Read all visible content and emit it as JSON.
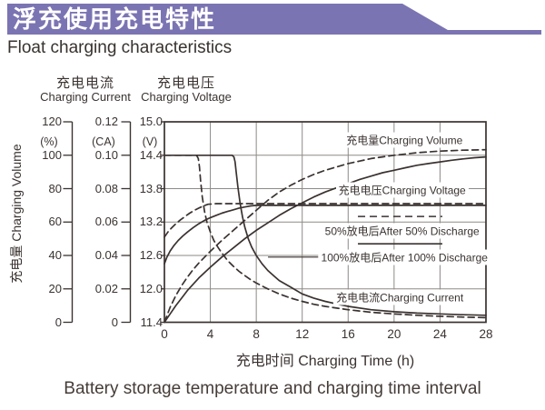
{
  "colors": {
    "ink": "#3a3230",
    "grid": "#8e8a86",
    "accent_purple": "#7b74b2",
    "text_dark": "#453c38"
  },
  "header": {
    "title_zh": "浮充使用充电特性",
    "subtitle_en": "Float charging characteristics"
  },
  "caption": "Battery storage temperature and charging time interval",
  "chart_data": {
    "type": "line",
    "x_axis": {
      "label": "充电时间 Charging Time (h)",
      "ticks": [
        0,
        4,
        8,
        12,
        16,
        20,
        24,
        28
      ],
      "range": [
        0,
        28
      ],
      "grid": true
    },
    "y_axes": [
      {
        "id": "volume",
        "unit": "(%)",
        "ticks": [
          "120",
          "100",
          "80",
          "60",
          "40",
          "20",
          "0"
        ],
        "range": [
          0,
          120
        ],
        "side_label": "充电量 Charging Volume"
      },
      {
        "id": "current",
        "header_zh": "充电电流",
        "header_en": "Charging Current",
        "unit": "(CA)",
        "ticks": [
          "0.12",
          "0.10",
          "0.08",
          "0.06",
          "0.04",
          "0.02",
          "0"
        ],
        "range": [
          0,
          0.12
        ]
      },
      {
        "id": "voltage",
        "header_zh": "充电电压",
        "header_en": "Charging Voltage",
        "unit": "(V)",
        "ticks": [
          "15.0",
          "14.4",
          "13.8",
          "13.2",
          "12.6",
          "12.0",
          "11.4"
        ],
        "range": [
          11.4,
          15.0
        ]
      }
    ],
    "series": [
      {
        "name": "charging-current-after-100-discharge",
        "axis": "current",
        "style": "solid",
        "points": [
          [
            0,
            0.1
          ],
          [
            5.9,
            0.1
          ],
          [
            6.05,
            0.099
          ],
          [
            6.15,
            0.096
          ],
          [
            6.25,
            0.09
          ],
          [
            6.4,
            0.081
          ],
          [
            6.6,
            0.071
          ],
          [
            6.8,
            0.063
          ],
          [
            7,
            0.057
          ],
          [
            7.3,
            0.05
          ],
          [
            7.6,
            0.045
          ],
          [
            8,
            0.04
          ],
          [
            8.5,
            0.035
          ],
          [
            9,
            0.031
          ],
          [
            9.5,
            0.028
          ],
          [
            10,
            0.025
          ],
          [
            11,
            0.021
          ],
          [
            12,
            0.017
          ],
          [
            13,
            0.0145
          ],
          [
            14,
            0.0125
          ],
          [
            15,
            0.011
          ],
          [
            16,
            0.0095
          ],
          [
            18,
            0.0075
          ],
          [
            20,
            0.0063
          ],
          [
            22,
            0.0055
          ],
          [
            24,
            0.005
          ],
          [
            26,
            0.0045
          ],
          [
            28,
            0.0042
          ]
        ]
      },
      {
        "name": "charging-current-after-50-discharge",
        "axis": "current",
        "style": "dashed",
        "points": [
          [
            0,
            0.1
          ],
          [
            2.8,
            0.1
          ],
          [
            2.95,
            0.098
          ],
          [
            3.05,
            0.093
          ],
          [
            3.15,
            0.085
          ],
          [
            3.3,
            0.075
          ],
          [
            3.5,
            0.066
          ],
          [
            3.7,
            0.06
          ],
          [
            4,
            0.054
          ],
          [
            4.3,
            0.049
          ],
          [
            4.7,
            0.0445
          ],
          [
            5,
            0.0415
          ],
          [
            5.5,
            0.037
          ],
          [
            6,
            0.0335
          ],
          [
            6.5,
            0.0305
          ],
          [
            7,
            0.028
          ],
          [
            7.5,
            0.0255
          ],
          [
            8,
            0.0235
          ],
          [
            9,
            0.02
          ],
          [
            10,
            0.017
          ],
          [
            11,
            0.0145
          ],
          [
            12,
            0.0125
          ],
          [
            13,
            0.0108
          ],
          [
            14,
            0.0095
          ],
          [
            15,
            0.0085
          ],
          [
            16,
            0.0075
          ],
          [
            18,
            0.006
          ],
          [
            20,
            0.005
          ],
          [
            22,
            0.0042
          ],
          [
            24,
            0.0036
          ],
          [
            26,
            0.0031
          ],
          [
            28,
            0.0028
          ]
        ]
      },
      {
        "name": "charging-voltage-after-100-discharge",
        "axis": "voltage",
        "style": "solid",
        "points": [
          [
            0,
            12.45
          ],
          [
            0.2,
            12.56
          ],
          [
            0.5,
            12.68
          ],
          [
            0.8,
            12.77
          ],
          [
            1.2,
            12.87
          ],
          [
            1.6,
            12.95
          ],
          [
            2,
            13.02
          ],
          [
            2.5,
            13.1
          ],
          [
            3,
            13.17
          ],
          [
            3.5,
            13.23
          ],
          [
            4,
            13.28
          ],
          [
            4.5,
            13.32
          ],
          [
            5,
            13.36
          ],
          [
            5.5,
            13.39
          ],
          [
            6,
            13.42
          ],
          [
            6.5,
            13.45
          ],
          [
            7,
            13.47
          ],
          [
            7.5,
            13.49
          ],
          [
            8,
            13.5
          ],
          [
            28,
            13.5
          ]
        ]
      },
      {
        "name": "charging-voltage-after-50-discharge",
        "axis": "voltage",
        "style": "dashed",
        "points": [
          [
            0,
            12.93
          ],
          [
            0.3,
            13.02
          ],
          [
            0.6,
            13.09
          ],
          [
            1,
            13.17
          ],
          [
            1.4,
            13.24
          ],
          [
            1.8,
            13.3
          ],
          [
            2.2,
            13.36
          ],
          [
            2.6,
            13.41
          ],
          [
            3,
            13.45
          ],
          [
            3.4,
            13.49
          ],
          [
            3.8,
            13.52
          ],
          [
            4.5,
            13.53
          ],
          [
            28,
            13.53
          ]
        ]
      },
      {
        "name": "charging-volume-after-100-discharge",
        "axis": "volume",
        "style": "solid",
        "points": [
          [
            0,
            0
          ],
          [
            0.5,
            5
          ],
          [
            1,
            10
          ],
          [
            1.5,
            14.5
          ],
          [
            2,
            19
          ],
          [
            3,
            26.5
          ],
          [
            4,
            33
          ],
          [
            5,
            39
          ],
          [
            6,
            44.5
          ],
          [
            7,
            50
          ],
          [
            8,
            55
          ],
          [
            9,
            59.5
          ],
          [
            10,
            64
          ],
          [
            11,
            68
          ],
          [
            12,
            71.5
          ],
          [
            13,
            75
          ],
          [
            14,
            78
          ],
          [
            15,
            80.5
          ],
          [
            16,
            83
          ],
          [
            17,
            85.5
          ],
          [
            18,
            87.5
          ],
          [
            19,
            89.5
          ],
          [
            20,
            91
          ],
          [
            21,
            92.5
          ],
          [
            22,
            94
          ],
          [
            23,
            95
          ],
          [
            24,
            96
          ],
          [
            25,
            97
          ],
          [
            26,
            97.8
          ],
          [
            27,
            98.5
          ],
          [
            28,
            99
          ]
        ]
      },
      {
        "name": "charging-volume-after-50-discharge",
        "axis": "volume",
        "style": "dashed",
        "points": [
          [
            0,
            0
          ],
          [
            0.5,
            9
          ],
          [
            1,
            16
          ],
          [
            1.5,
            22
          ],
          [
            2,
            27
          ],
          [
            2.5,
            31.5
          ],
          [
            3,
            35.5
          ],
          [
            4,
            42.5
          ],
          [
            5,
            49
          ],
          [
            6,
            55
          ],
          [
            7,
            61
          ],
          [
            8,
            67
          ],
          [
            9,
            73
          ],
          [
            10,
            78
          ],
          [
            11,
            82
          ],
          [
            12,
            85.5
          ],
          [
            13,
            88.5
          ],
          [
            14,
            91
          ],
          [
            15,
            93
          ],
          [
            16,
            95
          ],
          [
            17,
            96.5
          ],
          [
            18,
            98
          ],
          [
            19,
            99
          ],
          [
            20,
            100
          ],
          [
            22,
            101.5
          ],
          [
            24,
            102.5
          ],
          [
            26,
            103
          ],
          [
            28,
            103.3
          ]
        ]
      }
    ],
    "annotations": [
      {
        "name": "label-charging-volume",
        "text": "充电量Charging Volume",
        "t": 20.9,
        "v": 14.67
      },
      {
        "name": "label-charging-voltage",
        "text": "充电电压Charging Voltage",
        "t": 20.7,
        "v": 13.77
      },
      {
        "name": "legend-after-50-discharge",
        "text": "50%放电后After 50% Discharge",
        "t": 20.7,
        "v": 13.04
      },
      {
        "name": "legend-after-100-discharge",
        "text": "100%放电后After 100% Discharge",
        "t": 20.9,
        "v": 12.57
      },
      {
        "name": "label-charging-current",
        "text": "充电电流Charging Current",
        "t": 20.5,
        "v": 11.85
      }
    ],
    "legend_samples": [
      {
        "style": "dashed",
        "t1": 16.85,
        "t2": 24.2,
        "v": 13.3
      },
      {
        "style": "solid",
        "t1": 16.85,
        "t2": 24.2,
        "v": 12.81
      }
    ],
    "leader_line": {
      "t1": 9.02,
      "t2": 13.5,
      "v": 12.57
    }
  }
}
